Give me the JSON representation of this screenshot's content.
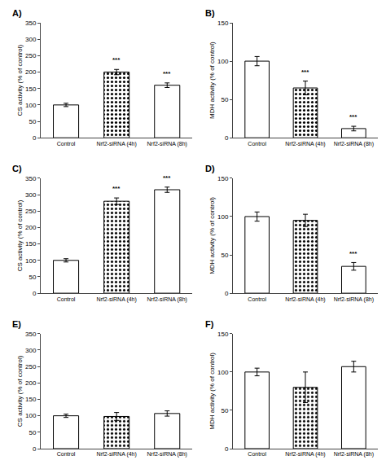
{
  "chart_data": [
    {
      "type": "bar",
      "title": "A)",
      "ylabel": "CS activity (% of control)",
      "categories": [
        "Control",
        "Nrf2-siRNA (4h)",
        "Nrf2-siRNA (8h)"
      ],
      "values": [
        100,
        200,
        160
      ],
      "errors": [
        5,
        8,
        7
      ],
      "colors": [
        "#ffffff",
        "#000000",
        "#ffffff"
      ],
      "ylim": [
        0,
        350
      ],
      "yticks": [
        0,
        50,
        100,
        150,
        200,
        250,
        300,
        350
      ],
      "grid": false,
      "annotations": [
        {
          "x": "Nrf2-siRNA (4h)",
          "text": "***"
        },
        {
          "x": "Nrf2-siRNA (8h)",
          "text": "***"
        }
      ]
    },
    {
      "type": "bar",
      "title": "B)",
      "ylabel": "MDH activity (% of control)",
      "categories": [
        "Control",
        "Nrf2-siRNA (4h)",
        "Nrf2-siRNA (8h)"
      ],
      "values": [
        100,
        65,
        12
      ],
      "errors": [
        6,
        9,
        3
      ],
      "colors": [
        "#ffffff",
        "#000000",
        "#ffffff"
      ],
      "ylim": [
        0,
        150
      ],
      "yticks": [
        0,
        50,
        100,
        150
      ],
      "grid": false,
      "annotations": [
        {
          "x": "Nrf2-siRNA (4h)",
          "text": "***"
        },
        {
          "x": "Nrf2-siRNA (8h)",
          "text": "***"
        }
      ]
    },
    {
      "type": "bar",
      "title": "C)",
      "ylabel": "CS activity (% of control)",
      "categories": [
        "Control",
        "Nrf2-siRNA (4h)",
        "Nrf2-siRNA (8h)"
      ],
      "values": [
        100,
        280,
        315
      ],
      "errors": [
        5,
        10,
        8
      ],
      "colors": [
        "#ffffff",
        "#000000",
        "#ffffff"
      ],
      "ylim": [
        0,
        350
      ],
      "yticks": [
        0,
        50,
        100,
        150,
        200,
        250,
        300,
        350
      ],
      "grid": false,
      "annotations": [
        {
          "x": "Nrf2-siRNA (4h)",
          "text": "***"
        },
        {
          "x": "Nrf2-siRNA (8h)",
          "text": "***"
        }
      ]
    },
    {
      "type": "bar",
      "title": "D)",
      "ylabel": "MDH activity (% of control)",
      "categories": [
        "Control",
        "Nrf2-siRNA (4h)",
        "Nrf2-siRNA (8h)"
      ],
      "values": [
        100,
        95,
        35
      ],
      "errors": [
        6,
        8,
        5
      ],
      "colors": [
        "#ffffff",
        "#000000",
        "#ffffff"
      ],
      "ylim": [
        0,
        150
      ],
      "yticks": [
        0,
        50,
        100,
        150
      ],
      "grid": false,
      "annotations": [
        {
          "x": "Nrf2-siRNA (8h)",
          "text": "***"
        }
      ]
    },
    {
      "type": "bar",
      "title": "E)",
      "ylabel": "CS activity (% of control)",
      "categories": [
        "Control",
        "Nrf2-siRNA (4h)",
        "Nrf2-siRNA (8h)"
      ],
      "values": [
        100,
        98,
        107
      ],
      "errors": [
        5,
        12,
        8
      ],
      "colors": [
        "#ffffff",
        "#000000",
        "#ffffff"
      ],
      "ylim": [
        0,
        350
      ],
      "yticks": [
        0,
        50,
        100,
        150,
        200,
        250,
        300,
        350
      ],
      "grid": false
    },
    {
      "type": "bar",
      "title": "F)",
      "ylabel": "MDH activity (% of control)",
      "categories": [
        "Control",
        "Nrf2-siRNA (4h)",
        "Nrf2-siRNA (8h)"
      ],
      "values": [
        100,
        80,
        107
      ],
      "errors": [
        5,
        20,
        7
      ],
      "colors": [
        "#ffffff",
        "#000000",
        "#ffffff"
      ],
      "ylim": [
        0,
        150
      ],
      "yticks": [
        0,
        50,
        100,
        150
      ],
      "grid": false
    }
  ]
}
